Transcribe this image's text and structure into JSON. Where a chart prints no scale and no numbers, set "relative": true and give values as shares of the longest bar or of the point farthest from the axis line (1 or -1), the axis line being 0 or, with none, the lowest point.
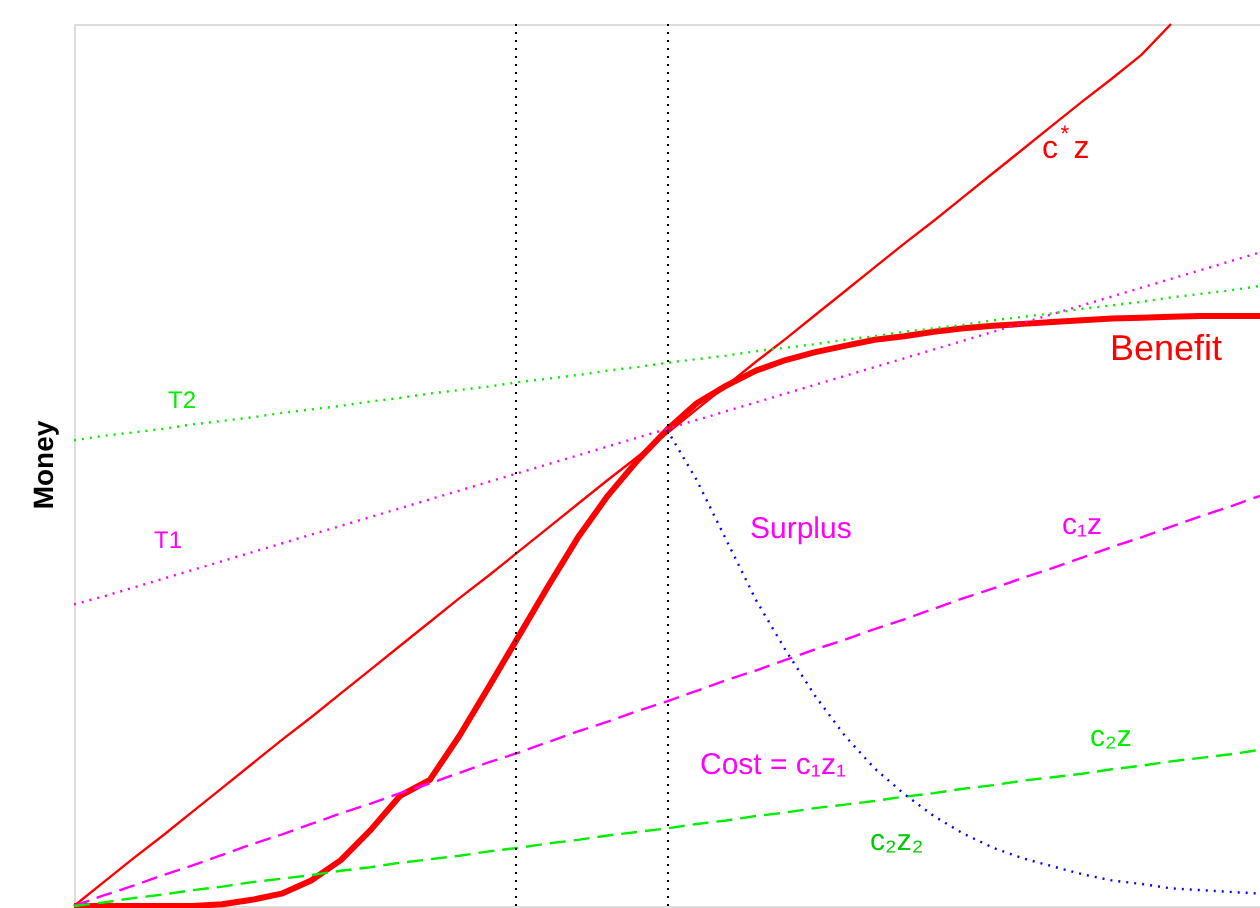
{
  "chart_data": {
    "type": "line",
    "relative": true,
    "ylabel": "Money",
    "categories": [
      null,
      null,
      null,
      null,
      null,
      null,
      null,
      null,
      null,
      null,
      null,
      null,
      null,
      null,
      null,
      null,
      null,
      null,
      null,
      null,
      null,
      null,
      null,
      null,
      null,
      null,
      null,
      null,
      null,
      null,
      null,
      null,
      null,
      null,
      null,
      null,
      null,
      null,
      null,
      null,
      null
    ],
    "series": [
      {
        "name": "Benefit",
        "color": "#ff0000",
        "line_style": "solid",
        "values": [
          0,
          0,
          0,
          0,
          0,
          0.002,
          0.007,
          0.014,
          0.029,
          0.052,
          0.086,
          0.125,
          0.143,
          0.193,
          0.249,
          0.306,
          0.363,
          0.418,
          0.465,
          0.505,
          0.54,
          0.57,
          0.59,
          0.607,
          0.619,
          0.628,
          0.635,
          0.642,
          0.646,
          0.651,
          0.655,
          0.658,
          0.66,
          0.662,
          0.664,
          0.666,
          0.667,
          0.668,
          0.669,
          0.669,
          0.669
        ]
      },
      {
        "name": "c$^{*}$z",
        "color": "#ff0000",
        "line_style": "solid",
        "values": [
          0,
          0.027,
          0.054,
          0.08,
          0.107,
          0.134,
          0.161,
          0.188,
          0.214,
          0.241,
          0.268,
          0.295,
          0.322,
          0.349,
          0.375,
          0.402,
          0.429,
          0.456,
          0.483,
          0.509,
          0.536,
          0.563,
          0.59,
          0.617,
          0.643,
          0.67,
          0.697,
          0.724,
          0.751,
          0.777,
          0.804,
          0.831,
          0.858,
          0.885,
          0.912,
          0.938,
          0.965,
          1,
          null,
          null,
          null
        ]
      },
      {
        "name": "c₁z",
        "color": "#ff00ff",
        "line_style": "dashed",
        "values": [
          0,
          0.012,
          0.023,
          0.035,
          0.046,
          0.058,
          0.07,
          0.081,
          0.093,
          0.105,
          0.116,
          0.128,
          0.139,
          0.151,
          0.163,
          0.174,
          0.186,
          0.198,
          0.209,
          0.221,
          0.232,
          0.244,
          0.256,
          0.267,
          0.279,
          0.291,
          0.302,
          0.314,
          0.325,
          0.337,
          0.349,
          0.36,
          0.372,
          0.383,
          0.395,
          0.407,
          0.418,
          0.43,
          0.442,
          0.453,
          0.465
        ]
      },
      {
        "name": "c₂z",
        "color": "#00ee00",
        "line_style": "dashed",
        "values": [
          0,
          0.004,
          0.009,
          0.013,
          0.018,
          0.022,
          0.027,
          0.031,
          0.035,
          0.04,
          0.044,
          0.049,
          0.053,
          0.057,
          0.062,
          0.066,
          0.071,
          0.075,
          0.08,
          0.084,
          0.088,
          0.093,
          0.097,
          0.102,
          0.106,
          0.111,
          0.115,
          0.119,
          0.124,
          0.128,
          0.133,
          0.137,
          0.142,
          0.146,
          0.15,
          0.155,
          0.159,
          0.164,
          0.168,
          0.172,
          0.177
        ]
      },
      {
        "name": "T1",
        "color": "#ff00ff",
        "line_style": "dotted",
        "values": [
          0.342,
          0.351,
          0.361,
          0.371,
          0.381,
          0.391,
          0.401,
          0.411,
          0.421,
          0.431,
          0.441,
          0.451,
          0.461,
          0.471,
          0.481,
          0.491,
          0.501,
          0.511,
          0.521,
          0.531,
          0.541,
          0.551,
          0.561,
          0.571,
          0.581,
          0.591,
          0.601,
          0.611,
          0.621,
          0.631,
          0.641,
          0.651,
          0.661,
          0.671,
          0.681,
          0.691,
          0.701,
          0.711,
          0.721,
          0.731,
          0.741
        ]
      },
      {
        "name": "T2",
        "color": "#00ee00",
        "line_style": "dotted",
        "values": [
          0.528,
          0.533,
          0.537,
          0.541,
          0.546,
          0.55,
          0.554,
          0.559,
          0.563,
          0.567,
          0.572,
          0.576,
          0.581,
          0.585,
          0.589,
          0.594,
          0.598,
          0.602,
          0.607,
          0.611,
          0.616,
          0.62,
          0.624,
          0.629,
          0.633,
          0.637,
          0.642,
          0.646,
          0.651,
          0.655,
          0.659,
          0.664,
          0.668,
          0.672,
          0.677,
          0.681,
          0.685,
          0.69,
          0.694,
          0.698,
          0.703
        ]
      },
      {
        "color": "#0000ff",
        "line_style": "dotted",
        "values": [
          null,
          null,
          null,
          null,
          null,
          null,
          null,
          null,
          null,
          null,
          null,
          null,
          null,
          null,
          null,
          null,
          null,
          null,
          null,
          null,
          0.54,
          0.483,
          0.415,
          0.347,
          0.29,
          0.238,
          0.193,
          0.156,
          0.127,
          0.102,
          0.082,
          0.066,
          0.054,
          0.045,
          0.036,
          0.029,
          0.025,
          0.02,
          0.018,
          0.016,
          0.014
        ]
      }
    ],
    "annotations": [
      "Surplus",
      "Cost = c₁z₁",
      "c₂z₂"
    ]
  }
}
